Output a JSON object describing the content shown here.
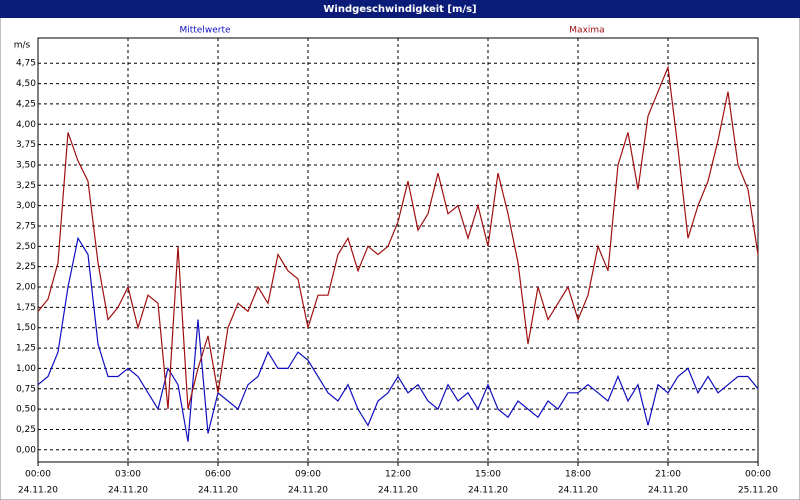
{
  "chart_data": {
    "type": "line",
    "title": "Windgeschwindigkeit [m/s]",
    "y_unit_label": "m/s",
    "x": [
      0,
      20,
      40,
      60,
      80,
      100,
      120,
      140,
      160,
      180,
      200,
      220,
      240,
      260,
      280,
      300,
      320,
      340,
      360,
      380,
      400,
      420,
      440,
      460,
      480,
      500,
      520,
      540,
      560,
      580,
      600,
      620,
      640,
      660,
      680,
      700,
      720,
      740,
      760,
      780,
      800,
      820,
      840,
      860,
      880,
      900,
      920,
      940,
      960,
      980,
      1000,
      1020,
      1040,
      1060,
      1080,
      1100,
      1120,
      1140,
      1160,
      1180,
      1200,
      1220,
      1240,
      1260,
      1280,
      1300,
      1320,
      1340,
      1360,
      1380,
      1400,
      1420,
      1440
    ],
    "series": [
      {
        "name": "Mittelwerte",
        "color": "#1010c0",
        "values": [
          0.8,
          0.9,
          1.2,
          2.0,
          2.6,
          2.4,
          1.3,
          0.9,
          0.9,
          1.0,
          0.9,
          0.7,
          0.5,
          1.0,
          0.8,
          0.1,
          1.6,
          0.2,
          0.7,
          0.6,
          0.5,
          0.8,
          0.9,
          1.2,
          1.0,
          1.0,
          1.2,
          1.1,
          0.9,
          0.7,
          0.6,
          0.8,
          0.5,
          0.3,
          0.6,
          0.7,
          0.9,
          0.7,
          0.8,
          0.6,
          0.5,
          0.8,
          0.6,
          0.7,
          0.5,
          0.8,
          0.5,
          0.4,
          0.6,
          0.5,
          0.4,
          0.6,
          0.5,
          0.7,
          0.7,
          0.8,
          0.7,
          0.6,
          0.9,
          0.6,
          0.8,
          0.3,
          0.8,
          0.7,
          0.9,
          1.0,
          0.7,
          0.9,
          0.7,
          0.8,
          0.9,
          0.9,
          0.75
        ]
      },
      {
        "name": "Maxima",
        "color": "#a01010",
        "values": [
          1.7,
          1.85,
          2.3,
          3.9,
          3.55,
          3.3,
          2.3,
          1.6,
          1.75,
          2.0,
          1.5,
          1.9,
          1.8,
          0.5,
          2.5,
          0.5,
          1.0,
          1.4,
          0.7,
          1.5,
          1.8,
          1.7,
          2.0,
          1.8,
          2.4,
          2.2,
          2.1,
          1.5,
          1.9,
          1.9,
          2.4,
          2.6,
          2.2,
          2.5,
          2.4,
          2.5,
          2.8,
          3.3,
          2.7,
          2.9,
          3.4,
          2.9,
          3.0,
          2.6,
          3.0,
          2.5,
          3.4,
          2.9,
          2.3,
          1.3,
          2.0,
          1.6,
          1.8,
          2.0,
          1.6,
          1.9,
          2.5,
          2.2,
          3.5,
          3.9,
          3.2,
          4.1,
          4.4,
          4.7,
          3.7,
          2.6,
          3.0,
          3.3,
          3.8,
          4.4,
          3.5,
          3.2,
          2.4
        ]
      }
    ],
    "xlim": [
      0,
      1440
    ],
    "xticks": [
      {
        "value": 0,
        "label": "00:00",
        "date": "24.11.20"
      },
      {
        "value": 180,
        "label": "03:00",
        "date": "24.11.20"
      },
      {
        "value": 360,
        "label": "06:00",
        "date": "24.11.20"
      },
      {
        "value": 540,
        "label": "09:00",
        "date": "24.11.20"
      },
      {
        "value": 720,
        "label": "12:00",
        "date": "24.11.20"
      },
      {
        "value": 900,
        "label": "15:00",
        "date": "24.11.20"
      },
      {
        "value": 1080,
        "label": "18:00",
        "date": "24.11.20"
      },
      {
        "value": 1260,
        "label": "21:00",
        "date": "24.11.20"
      },
      {
        "value": 1440,
        "label": "00:00",
        "date": "25.11.20"
      }
    ],
    "ylim": [
      -0.15,
      5.06
    ],
    "yticks": [
      {
        "value": 0,
        "label": "0,00"
      },
      {
        "value": 0.25,
        "label": "0,25"
      },
      {
        "value": 0.5,
        "label": "0,50"
      },
      {
        "value": 0.75,
        "label": "0,75"
      },
      {
        "value": 1,
        "label": "1,00"
      },
      {
        "value": 1.25,
        "label": "1,25"
      },
      {
        "value": 1.5,
        "label": "1,50"
      },
      {
        "value": 1.75,
        "label": "1,75"
      },
      {
        "value": 2,
        "label": "2,00"
      },
      {
        "value": 2.25,
        "label": "2,25"
      },
      {
        "value": 2.5,
        "label": "2,50"
      },
      {
        "value": 2.75,
        "label": "2,75"
      },
      {
        "value": 3,
        "label": "3,00"
      },
      {
        "value": 3.25,
        "label": "3,25"
      },
      {
        "value": 3.5,
        "label": "3,50"
      },
      {
        "value": 3.75,
        "label": "3,75"
      },
      {
        "value": 4,
        "label": "4,00"
      },
      {
        "value": 4.25,
        "label": "4,25"
      },
      {
        "value": 4.5,
        "label": "4,50"
      },
      {
        "value": 4.75,
        "label": "4,75"
      }
    ],
    "grid": true
  }
}
